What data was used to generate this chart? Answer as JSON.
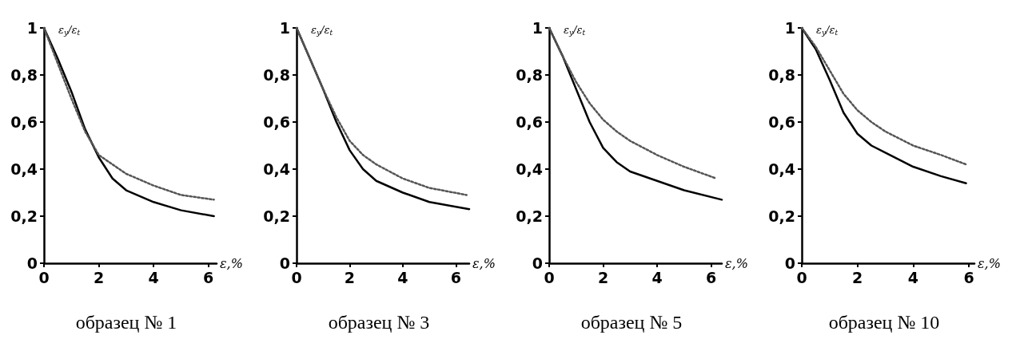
{
  "chart_data": [
    {
      "type": "line",
      "title": "образец № 1",
      "xlabel": "ε,%",
      "ylabel": "ε$_{y}$/ε$_{t}$",
      "xlim": [
        0,
        6.3
      ],
      "xticks": [
        0,
        2,
        4,
        6
      ],
      "ylim": [
        0,
        1
      ],
      "yticks": [
        {
          "value": 0,
          "label": "0"
        },
        {
          "value": 0.2,
          "label": "0,2"
        },
        {
          "value": 0.4,
          "label": "0,4"
        },
        {
          "value": 0.6,
          "label": "0,6"
        },
        {
          "value": 0.8,
          "label": "0,8"
        },
        {
          "value": 1,
          "label": "1"
        }
      ],
      "grid": false,
      "marker": "none",
      "series": [
        {
          "color": "#000000",
          "line_style": "solid",
          "x": [
            0,
            0.5,
            1,
            1.5,
            2,
            2.5,
            3,
            4,
            5,
            6.2
          ],
          "values": [
            1,
            0.87,
            0.73,
            0.57,
            0.45,
            0.36,
            0.31,
            0.26,
            0.225,
            0.2
          ]
        },
        {
          "color": "#555555",
          "line_style": "dotted",
          "x": [
            0,
            0.5,
            1,
            1.5,
            2,
            2.5,
            3,
            4,
            5,
            6.2
          ],
          "values": [
            1,
            0.85,
            0.7,
            0.56,
            0.46,
            0.42,
            0.38,
            0.33,
            0.29,
            0.27
          ]
        }
      ]
    },
    {
      "type": "line",
      "title": "образец № 3",
      "xlabel": "ε,%",
      "ylabel": "ε$_{y}$/ε$_{t}$",
      "xlim": [
        0,
        6.5
      ],
      "xticks": [
        0,
        2,
        4,
        6
      ],
      "ylim": [
        0,
        1
      ],
      "yticks": [
        {
          "value": 0,
          "label": "0"
        },
        {
          "value": 0.2,
          "label": "0,2"
        },
        {
          "value": 0.4,
          "label": "0,4"
        },
        {
          "value": 0.6,
          "label": "0,6"
        },
        {
          "value": 0.8,
          "label": "0,8"
        },
        {
          "value": 1,
          "label": "1"
        }
      ],
      "grid": false,
      "marker": "none",
      "series": [
        {
          "color": "#000000",
          "line_style": "solid",
          "x": [
            0,
            0.5,
            1,
            1.5,
            2,
            2.5,
            3,
            4,
            5,
            6.5
          ],
          "values": [
            1,
            0.87,
            0.74,
            0.6,
            0.48,
            0.4,
            0.35,
            0.3,
            0.26,
            0.23
          ]
        },
        {
          "color": "#555555",
          "line_style": "dotted",
          "x": [
            0,
            0.5,
            1,
            1.5,
            2,
            2.5,
            3,
            4,
            5,
            6.4
          ],
          "values": [
            1,
            0.87,
            0.74,
            0.62,
            0.52,
            0.46,
            0.42,
            0.36,
            0.32,
            0.29
          ]
        }
      ]
    },
    {
      "type": "line",
      "title": "образец № 5",
      "xlabel": "ε,%",
      "ylabel": "ε$_{y}$/ε$_{t}$",
      "xlim": [
        0,
        6.4
      ],
      "xticks": [
        0,
        2,
        4,
        6
      ],
      "ylim": [
        0,
        1
      ],
      "yticks": [
        {
          "value": 0,
          "label": "0"
        },
        {
          "value": 0.2,
          "label": "0,2"
        },
        {
          "value": 0.4,
          "label": "0,4"
        },
        {
          "value": 0.6,
          "label": "0,6"
        },
        {
          "value": 0.8,
          "label": "0,8"
        },
        {
          "value": 1,
          "label": "1"
        }
      ],
      "grid": false,
      "marker": "none",
      "series": [
        {
          "color": "#000000",
          "line_style": "solid",
          "x": [
            0,
            0.5,
            1,
            1.5,
            2,
            2.5,
            3,
            4,
            5,
            6.4
          ],
          "values": [
            1,
            0.88,
            0.74,
            0.6,
            0.49,
            0.43,
            0.39,
            0.35,
            0.31,
            0.27
          ]
        },
        {
          "color": "#555555",
          "line_style": "dotted",
          "x": [
            0,
            0.5,
            1,
            1.5,
            2,
            2.5,
            3,
            4,
            5,
            6.2
          ],
          "values": [
            1,
            0.88,
            0.77,
            0.68,
            0.61,
            0.56,
            0.52,
            0.46,
            0.41,
            0.36
          ]
        }
      ]
    },
    {
      "type": "line",
      "title": "образец № 10",
      "xlabel": "ε,%",
      "ylabel": "ε$_{y}$/ε$_{t}$",
      "xlim": [
        0,
        6.2
      ],
      "xticks": [
        0,
        2,
        4,
        6
      ],
      "ylim": [
        0,
        1
      ],
      "yticks": [
        {
          "value": 0,
          "label": "0"
        },
        {
          "value": 0.2,
          "label": "0,2"
        },
        {
          "value": 0.4,
          "label": "0,4"
        },
        {
          "value": 0.6,
          "label": "0,6"
        },
        {
          "value": 0.8,
          "label": "0,8"
        },
        {
          "value": 1,
          "label": "1"
        }
      ],
      "grid": false,
      "marker": "none",
      "series": [
        {
          "color": "#000000",
          "line_style": "solid",
          "x": [
            0,
            0.5,
            1,
            1.5,
            2,
            2.5,
            3,
            4,
            5,
            5.9
          ],
          "values": [
            1,
            0.91,
            0.78,
            0.64,
            0.55,
            0.5,
            0.47,
            0.41,
            0.37,
            0.34
          ]
        },
        {
          "color": "#555555",
          "line_style": "dotted",
          "x": [
            0,
            0.5,
            1,
            1.5,
            2,
            2.5,
            3,
            4,
            5,
            5.9
          ],
          "values": [
            1,
            0.92,
            0.82,
            0.72,
            0.65,
            0.6,
            0.56,
            0.5,
            0.46,
            0.42
          ]
        }
      ]
    }
  ]
}
